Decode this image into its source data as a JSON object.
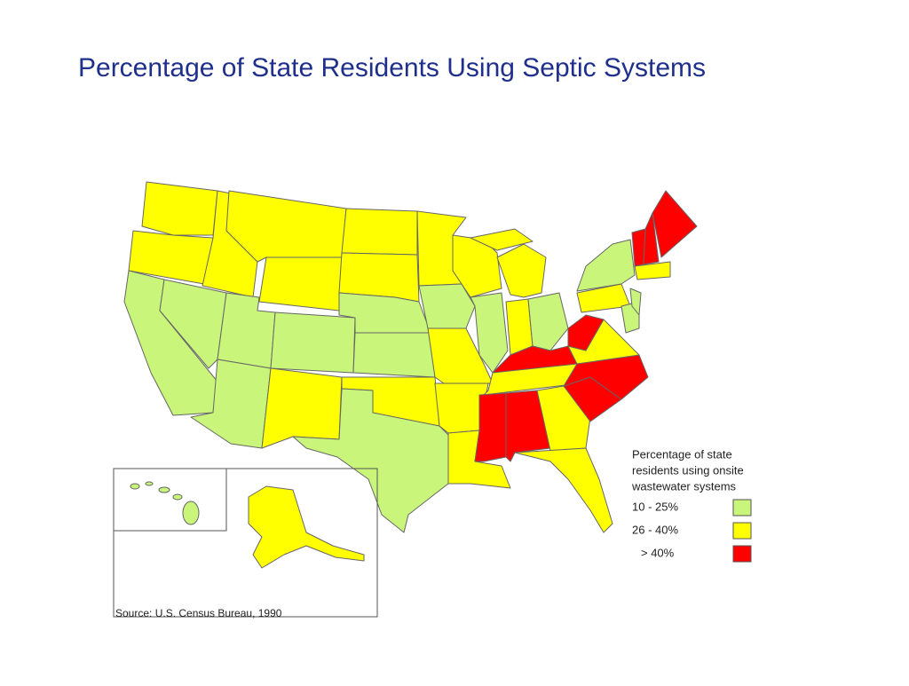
{
  "title": "Percentage of State Residents Using Septic Systems",
  "legend": {
    "title": [
      "Percentage of state",
      "residents using onsite",
      "wastewater systems"
    ],
    "items": [
      {
        "label": "10 - 25%",
        "color": "#c8f57a"
      },
      {
        "label": "26 - 40%",
        "color": "#ffff00"
      },
      {
        "label": "> 40%",
        "color": "#ff0000"
      }
    ]
  },
  "source": "Source: U.S. Census Bureau, 1990"
}
